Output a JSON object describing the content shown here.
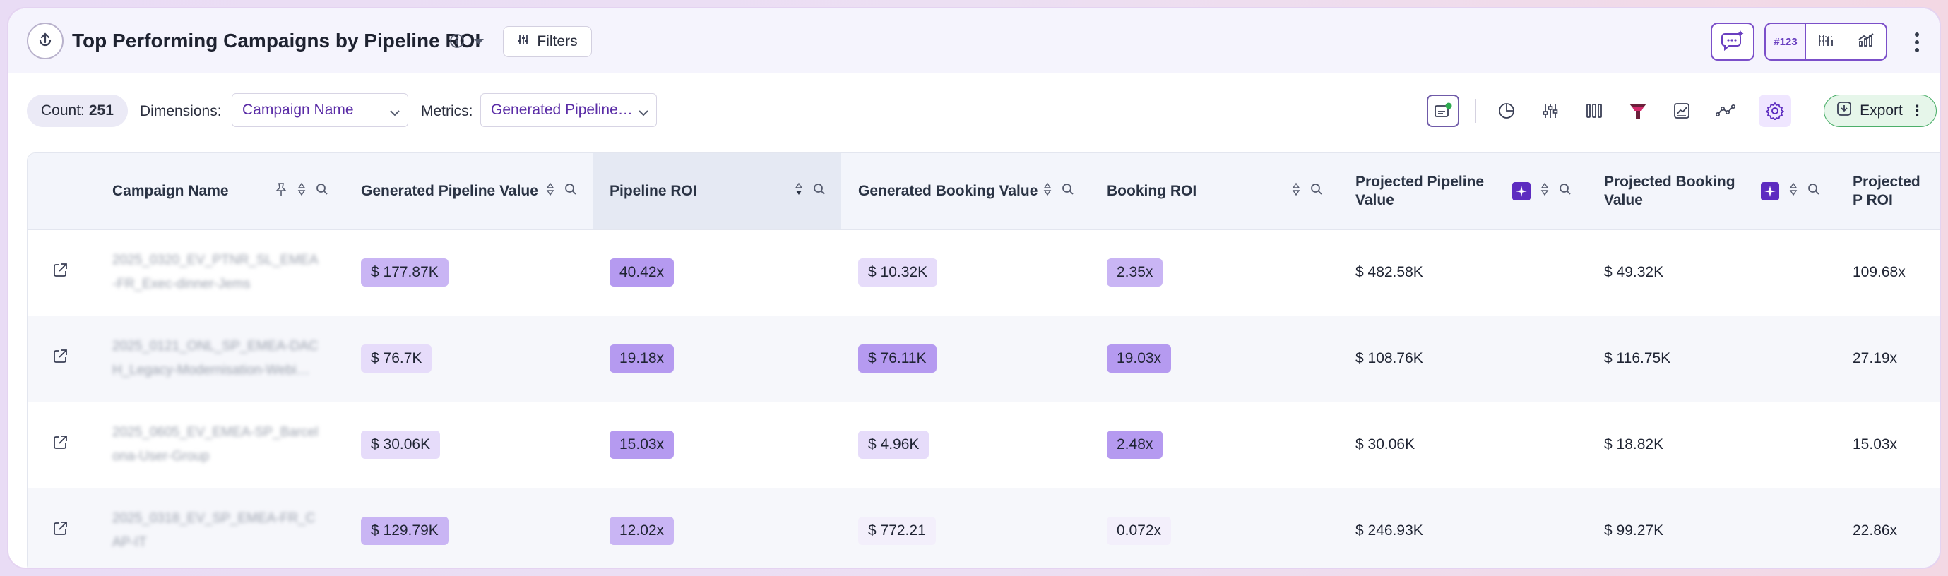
{
  "header": {
    "title": "Top Performing Campaigns by Pipeline ROI",
    "filters_label": "Filters",
    "number_format_label": "#123"
  },
  "toolbar": {
    "count_label": "Count:",
    "count_value": "251",
    "dimensions_label": "Dimensions:",
    "dimensions_value": "Campaign Name",
    "metrics_label": "Metrics:",
    "metrics_value": "Generated Pipeline…",
    "export_label": "Export"
  },
  "table": {
    "columns": [
      {
        "label": "Campaign Name"
      },
      {
        "label": "Generated Pipeline Value"
      },
      {
        "label": "Pipeline ROI"
      },
      {
        "label": "Generated Booking Value"
      },
      {
        "label": "Booking ROI"
      },
      {
        "label": "Projected Pipeline Value"
      },
      {
        "label": "Projected Booking Value"
      },
      {
        "label": "Projected P ROI"
      }
    ],
    "rows": [
      {
        "campaign_line1": "2025_0320_EV_PTNR_SL_EMEA",
        "campaign_line2": "-FR_Exec-dinner-Jems",
        "generated_pipeline": "$ 177.87K",
        "pipeline_roi": "40.42x",
        "generated_booking": "$ 10.32K",
        "booking_roi": "2.35x",
        "projected_pipeline": "$ 482.58K",
        "projected_booking": "$ 49.32K",
        "projected_roi": "109.68x"
      },
      {
        "campaign_line1": "2025_0121_ONL_SP_EMEA-DAC",
        "campaign_line2": "H_Legacy-Modernisation-Webi…",
        "generated_pipeline": "$ 76.7K",
        "pipeline_roi": "19.18x",
        "generated_booking": "$ 76.11K",
        "booking_roi": "19.03x",
        "projected_pipeline": "$ 108.76K",
        "projected_booking": "$ 116.75K",
        "projected_roi": "27.19x"
      },
      {
        "campaign_line1": "2025_0605_EV_EMEA-SP_Barcel",
        "campaign_line2": "ona-User-Group",
        "generated_pipeline": "$ 30.06K",
        "pipeline_roi": "15.03x",
        "generated_booking": "$ 4.96K",
        "booking_roi": "2.48x",
        "projected_pipeline": "$ 30.06K",
        "projected_booking": "$ 18.82K",
        "projected_roi": "15.03x"
      },
      {
        "campaign_line1": "2025_0318_EV_SP_EMEA-FR_C",
        "campaign_line2": "AP-IT",
        "generated_pipeline": "$ 129.79K",
        "pipeline_roi": "12.02x",
        "generated_booking": "$ 772.21",
        "booking_roi": "0.072x",
        "projected_pipeline": "$ 246.93K",
        "projected_booking": "$ 99.27K",
        "projected_roi": "22.86x"
      }
    ]
  },
  "colors": {
    "accent": "#5d2cc0",
    "export_border": "#4caf6a",
    "heat_low": "#f3effb",
    "heat_high": "#b59af0"
  }
}
